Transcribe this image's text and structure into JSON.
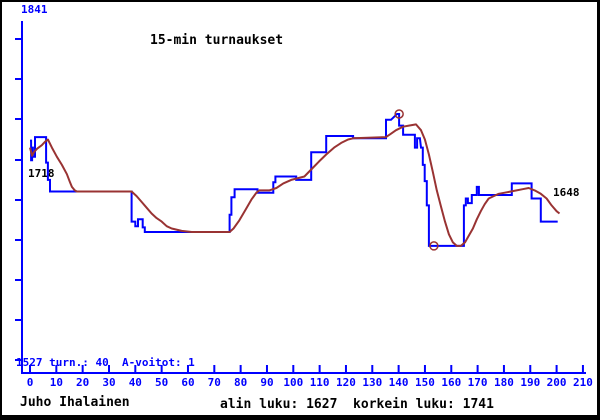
{
  "window": {
    "background": "#ffffff",
    "border_color": "#000000"
  },
  "chart": {
    "title": "15-min turnaukset",
    "y_axis_top_label": "1841",
    "stats_line": "1527 turn.: 40  A-voitot: 1",
    "start_value_label": "1718",
    "end_value_label": "1648",
    "axis_color": "#0000ff",
    "x_tick_labels": [
      "0",
      "10",
      "20",
      "30",
      "40",
      "50",
      "60",
      "70",
      "80",
      "90",
      "100",
      "110",
      "120",
      "130",
      "140",
      "150",
      "160",
      "170",
      "180",
      "190",
      "200",
      "210"
    ]
  },
  "footer": {
    "player_name": "Juho Ihalainen",
    "summary": "alin luku: 1627  korkein luku: 1741"
  },
  "chart_data": {
    "type": "line",
    "title": "15-min turnaukset",
    "xlabel": "",
    "ylabel": "",
    "x_axis": {
      "min": 0,
      "max": 210,
      "tick_step": 10
    },
    "y_axis": {
      "min": 1527,
      "max": 1841,
      "lowest_value": 1627,
      "highest_value": 1741
    },
    "stats": {
      "turnaukset": 40,
      "a_voitot": 1,
      "alin_luku": 1627,
      "korkein_luku": 1741,
      "alku_luku": 1718,
      "loppu_luku": 1648
    },
    "legend": "none",
    "grid": false,
    "series": [
      {
        "name": "rating",
        "color": "#0000ff",
        "style": "step",
        "points": [
          [
            0,
            1718
          ],
          [
            0.4,
            1718
          ],
          [
            0.4,
            1701
          ],
          [
            0.8,
            1701
          ],
          [
            0.8,
            1712
          ],
          [
            1.1,
            1712
          ],
          [
            1.1,
            1704
          ],
          [
            1.9,
            1704
          ],
          [
            1.9,
            1721
          ],
          [
            6.1,
            1721
          ],
          [
            6.1,
            1699
          ],
          [
            6.8,
            1699
          ],
          [
            6.8,
            1684
          ],
          [
            7.6,
            1684
          ],
          [
            7.6,
            1674
          ],
          [
            38.6,
            1674
          ],
          [
            38.6,
            1648
          ],
          [
            40,
            1648
          ],
          [
            40,
            1644
          ],
          [
            41,
            1644
          ],
          [
            41,
            1650
          ],
          [
            42.8,
            1650
          ],
          [
            42.8,
            1643
          ],
          [
            43.6,
            1643
          ],
          [
            43.6,
            1639
          ],
          [
            75.8,
            1639
          ],
          [
            75.8,
            1654
          ],
          [
            76.5,
            1654
          ],
          [
            76.5,
            1669
          ],
          [
            77.7,
            1669
          ],
          [
            77.7,
            1676
          ],
          [
            86.4,
            1676
          ],
          [
            86.4,
            1673
          ],
          [
            92.4,
            1673
          ],
          [
            92.4,
            1682
          ],
          [
            93.2,
            1682
          ],
          [
            93.2,
            1687
          ],
          [
            101.1,
            1687
          ],
          [
            101.1,
            1684
          ],
          [
            106.8,
            1684
          ],
          [
            106.8,
            1708
          ],
          [
            112.5,
            1708
          ],
          [
            112.5,
            1722
          ],
          [
            122.7,
            1722
          ],
          [
            122.7,
            1720
          ],
          [
            135.2,
            1720
          ],
          [
            135.2,
            1736
          ],
          [
            137.1,
            1736
          ],
          [
            139.4,
            1741
          ],
          [
            140.2,
            1741
          ],
          [
            140.2,
            1731
          ],
          [
            141.7,
            1731
          ],
          [
            141.7,
            1723
          ],
          [
            146.2,
            1723
          ],
          [
            146.2,
            1712
          ],
          [
            147,
            1712
          ],
          [
            147,
            1720
          ],
          [
            148.1,
            1720
          ],
          [
            148.5,
            1712
          ],
          [
            149.2,
            1712
          ],
          [
            149.2,
            1697
          ],
          [
            149.9,
            1697
          ],
          [
            149.9,
            1683
          ],
          [
            150.7,
            1683
          ],
          [
            150.7,
            1662
          ],
          [
            151.5,
            1662
          ],
          [
            151.5,
            1627
          ],
          [
            164.8,
            1627
          ],
          [
            164.8,
            1662
          ],
          [
            165.5,
            1662
          ],
          [
            165.5,
            1668
          ],
          [
            166.3,
            1668
          ],
          [
            166.3,
            1664
          ],
          [
            167.8,
            1664
          ],
          [
            167.8,
            1671
          ],
          [
            169.7,
            1671
          ],
          [
            169.7,
            1678
          ],
          [
            170.5,
            1678
          ],
          [
            170.5,
            1671
          ],
          [
            183,
            1671
          ],
          [
            183,
            1681
          ],
          [
            190.5,
            1681
          ],
          [
            190.5,
            1668
          ],
          [
            194,
            1668
          ],
          [
            194,
            1648
          ],
          [
            200.4,
            1648
          ]
        ]
      },
      {
        "name": "smoothed-average",
        "color": "#993333",
        "style": "smooth",
        "points": [
          [
            0,
            1712
          ],
          [
            0.8,
            1705
          ],
          [
            1.5,
            1708
          ],
          [
            2.7,
            1711
          ],
          [
            4.5,
            1714
          ],
          [
            5.7,
            1717
          ],
          [
            6.8,
            1719
          ],
          [
            8.3,
            1712
          ],
          [
            10.2,
            1704
          ],
          [
            12.1,
            1697
          ],
          [
            14,
            1689
          ],
          [
            15.2,
            1682
          ],
          [
            15.9,
            1678
          ],
          [
            17,
            1675
          ],
          [
            17.8,
            1674
          ],
          [
            38.6,
            1674
          ],
          [
            40.5,
            1670
          ],
          [
            42.4,
            1665
          ],
          [
            44.3,
            1660
          ],
          [
            46.2,
            1655
          ],
          [
            48.1,
            1651
          ],
          [
            50,
            1648
          ],
          [
            51.9,
            1644
          ],
          [
            53.8,
            1642
          ],
          [
            57.6,
            1640
          ],
          [
            61.4,
            1639
          ],
          [
            75.8,
            1639
          ],
          [
            77.3,
            1642
          ],
          [
            79.5,
            1649
          ],
          [
            81.8,
            1658
          ],
          [
            84.1,
            1667
          ],
          [
            86,
            1673
          ],
          [
            87.1,
            1675
          ],
          [
            90.9,
            1675
          ],
          [
            93.6,
            1677
          ],
          [
            96.2,
            1681
          ],
          [
            99.2,
            1684
          ],
          [
            104.2,
            1687
          ],
          [
            106.8,
            1693
          ],
          [
            109.8,
            1700
          ],
          [
            112.5,
            1706
          ],
          [
            115.5,
            1712
          ],
          [
            118.2,
            1716
          ],
          [
            120.8,
            1719
          ],
          [
            122.7,
            1720
          ],
          [
            135.2,
            1721
          ],
          [
            137.1,
            1724
          ],
          [
            139,
            1727
          ],
          [
            141.7,
            1730
          ],
          [
            143.9,
            1731
          ],
          [
            146.6,
            1732
          ],
          [
            148.5,
            1727
          ],
          [
            150,
            1719
          ],
          [
            151.5,
            1706
          ],
          [
            153,
            1691
          ],
          [
            154.5,
            1675
          ],
          [
            156.1,
            1661
          ],
          [
            157.6,
            1648
          ],
          [
            159.1,
            1637
          ],
          [
            160.6,
            1630
          ],
          [
            162.1,
            1627
          ],
          [
            163.6,
            1627
          ],
          [
            165.2,
            1630
          ],
          [
            166.7,
            1636
          ],
          [
            168.2,
            1642
          ],
          [
            169.7,
            1650
          ],
          [
            171.2,
            1657
          ],
          [
            172.7,
            1663
          ],
          [
            174.2,
            1668
          ],
          [
            176.1,
            1670
          ],
          [
            178,
            1672
          ],
          [
            180.3,
            1673
          ],
          [
            182.6,
            1674
          ],
          [
            184.8,
            1675
          ],
          [
            187.1,
            1676
          ],
          [
            189.4,
            1677
          ],
          [
            191.7,
            1675
          ],
          [
            194,
            1672
          ],
          [
            196.2,
            1668
          ],
          [
            198.1,
            1662
          ],
          [
            200,
            1657
          ],
          [
            201.1,
            1655
          ]
        ]
      }
    ],
    "markers": [
      {
        "name": "peak-marker",
        "x": 140.2,
        "y": 1741,
        "shape": "circle",
        "color": "#993333"
      },
      {
        "name": "low-marker",
        "x": 153.4,
        "y": 1627,
        "shape": "circle",
        "color": "#993333"
      }
    ]
  }
}
